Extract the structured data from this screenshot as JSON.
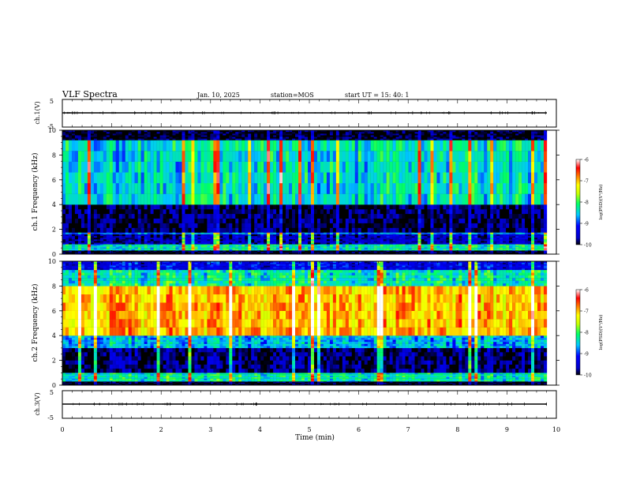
{
  "header": {
    "title": "VLF Spectra",
    "date": "Jan. 10, 2025",
    "station": "station=MOS",
    "start_ut": "start  UT =   15: 40: 1"
  },
  "colors": {
    "waveform": "#000000",
    "colormap": [
      "#000000",
      "#0000ff",
      "#00c8ff",
      "#00ff66",
      "#ffff00",
      "#ff8000",
      "#ff0000",
      "#ffffff"
    ]
  },
  "chart_data": [
    {
      "type": "line",
      "panel": "ch1_waveform",
      "ylabel": "ch.1(V)",
      "yticks": [
        "5",
        "-5"
      ],
      "ylim": [
        -5,
        5
      ],
      "xlim": [
        0,
        10
      ],
      "level": 0
    },
    {
      "type": "heatmap",
      "panel": "ch1_spectrogram",
      "ylabel": "ch.1  Frequency (kHz)",
      "yticks": [
        "0",
        "2",
        "4",
        "6",
        "8",
        "10"
      ],
      "ylim": [
        0,
        10
      ],
      "xlim": [
        0,
        9.85
      ],
      "colorbar": {
        "label": "log(PSD)(V²/Hz)",
        "ticks": [
          "-6",
          "-7",
          "-8",
          "-9",
          "-10"
        ],
        "range": [
          -10,
          -6
        ]
      },
      "bands": [
        {
          "from": 0,
          "to": 0.3,
          "level": -10
        },
        {
          "from": 0.3,
          "to": 0.8,
          "level": -8.3
        },
        {
          "from": 0.8,
          "to": 1.6,
          "level": -9.6
        },
        {
          "from": 1.6,
          "to": 1.75,
          "level": -8.8
        },
        {
          "from": 1.75,
          "to": 4.0,
          "level": -9.9
        },
        {
          "from": 4.0,
          "to": 9.2,
          "level": -8.4
        },
        {
          "from": 9.2,
          "to": 10,
          "level": -10
        }
      ]
    },
    {
      "type": "heatmap",
      "panel": "ch2_spectrogram",
      "ylabel": "ch.2  Frequency (kHz)",
      "yticks": [
        "0",
        "2",
        "4",
        "6",
        "8",
        "10"
      ],
      "ylim": [
        0,
        10
      ],
      "xlim": [
        0,
        9.85
      ],
      "colorbar": {
        "label": "log(PSD)(V²/Hz)",
        "ticks": [
          "-6",
          "-7",
          "-8",
          "-9",
          "-10"
        ],
        "range": [
          -10,
          -6
        ]
      },
      "bands": [
        {
          "from": 0,
          "to": 0.3,
          "level": -10
        },
        {
          "from": 0.3,
          "to": 1.0,
          "level": -8.3
        },
        {
          "from": 1.0,
          "to": 3.0,
          "level": -9.8
        },
        {
          "from": 3.0,
          "to": 4.0,
          "level": -8.6
        },
        {
          "from": 4.0,
          "to": 8.0,
          "level": -7.0
        },
        {
          "from": 8.0,
          "to": 9.3,
          "level": -8.3
        },
        {
          "from": 9.3,
          "to": 10,
          "level": -9.3
        }
      ]
    },
    {
      "type": "line",
      "panel": "ch3_waveform",
      "ylabel": "ch.3(V)",
      "yticks": [
        "5",
        "-5"
      ],
      "ylim": [
        -5,
        5
      ],
      "xlim": [
        0,
        10
      ],
      "level": 0
    }
  ],
  "xaxis": {
    "label": "Time (min)",
    "ticks": [
      "0",
      "1",
      "2",
      "3",
      "4",
      "5",
      "6",
      "7",
      "8",
      "9",
      "10"
    ]
  }
}
